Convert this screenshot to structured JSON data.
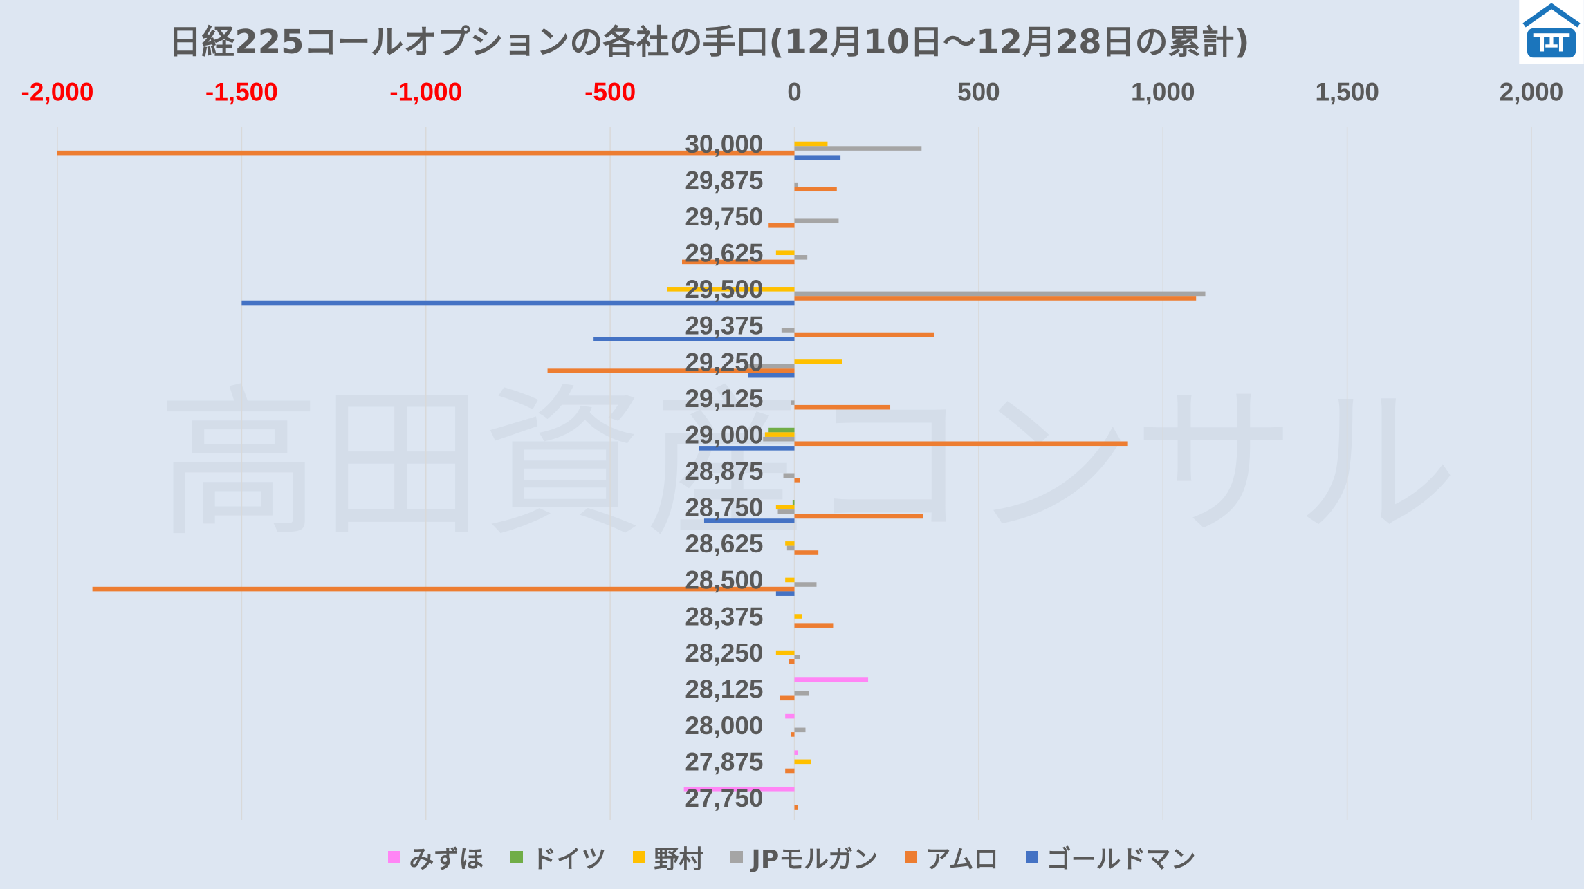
{
  "colors": {
    "background": "#dde6f2",
    "text": "#595959",
    "negative_tick": "#ff0000",
    "grid": "#d9d9d9"
  },
  "watermark": {
    "text": "高田資産コンサル"
  },
  "logo": {
    "icon": "house-logo-icon",
    "color": "#1b75bc"
  },
  "chart_data": {
    "type": "bar",
    "orientation": "horizontal",
    "title": "日経225コールオプションの各社の手口(12月10日～12月28日の累計)",
    "categories": [
      "30,000",
      "29,875",
      "29,750",
      "29,625",
      "29,500",
      "29,375",
      "29,250",
      "29,125",
      "29,000",
      "28,875",
      "28,750",
      "28,625",
      "28,500",
      "28,375",
      "28,250",
      "28,125",
      "28,000",
      "27,875",
      "27,750"
    ],
    "xlim": [
      -2000,
      2000
    ],
    "xticks": [
      -2000,
      -1500,
      -1000,
      -500,
      0,
      500,
      1000,
      1500,
      2000
    ],
    "xtick_labels": [
      "-2,000",
      "-1,500",
      "-1,000",
      "-500",
      "0",
      "500",
      "1,000",
      "1,500",
      "2,000"
    ],
    "xaxis_position": "top",
    "grid": true,
    "legend": "bottom",
    "series": [
      {
        "name": "みずほ",
        "color": "#ff85f5",
        "values": [
          0,
          0,
          0,
          0,
          0,
          0,
          0,
          0,
          0,
          0,
          0,
          0,
          0,
          0,
          0,
          200,
          -25,
          10,
          -300
        ]
      },
      {
        "name": "ドイツ",
        "color": "#70ad47",
        "values": [
          0,
          0,
          0,
          0,
          0,
          0,
          0,
          0,
          -70,
          0,
          -5,
          0,
          0,
          0,
          0,
          0,
          0,
          0,
          0
        ]
      },
      {
        "name": "野村",
        "color": "#ffc000",
        "values": [
          90,
          0,
          0,
          -50,
          -345,
          0,
          130,
          0,
          -80,
          0,
          -50,
          -25,
          -25,
          20,
          -50,
          0,
          0,
          45,
          0
        ]
      },
      {
        "name": "JPモルガン",
        "color": "#a5a5a5",
        "values": [
          345,
          10,
          120,
          35,
          1115,
          -35,
          -130,
          -10,
          -85,
          -30,
          -45,
          -20,
          60,
          0,
          15,
          40,
          30,
          0,
          0
        ]
      },
      {
        "name": "アムロ",
        "color": "#ed7d31",
        "values": [
          -2000,
          115,
          -70,
          -305,
          1090,
          380,
          -670,
          260,
          905,
          15,
          350,
          65,
          -1905,
          105,
          -15,
          -40,
          -10,
          -25,
          10
        ]
      },
      {
        "name": "ゴールドマン",
        "color": "#4472c4",
        "values": [
          125,
          0,
          0,
          0,
          -1500,
          -545,
          -125,
          0,
          -260,
          0,
          -245,
          0,
          -50,
          0,
          0,
          0,
          0,
          0,
          0
        ]
      }
    ]
  }
}
